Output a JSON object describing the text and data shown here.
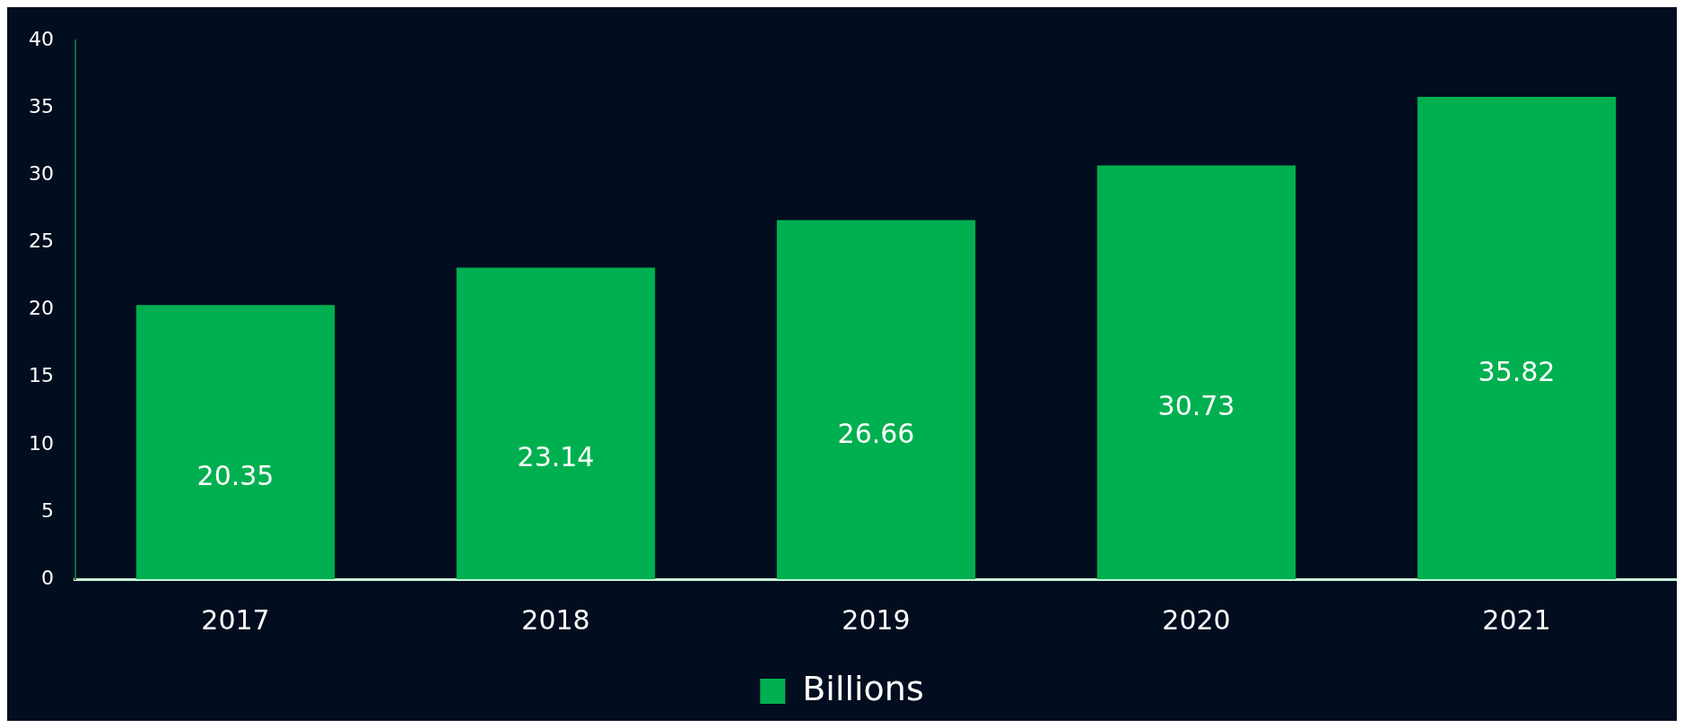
{
  "chart_data": {
    "type": "bar",
    "categories": [
      "2017",
      "2018",
      "2019",
      "2020",
      "2021"
    ],
    "series": [
      {
        "name": "Billions",
        "color": "#00b050",
        "values": [
          20.35,
          23.14,
          26.66,
          30.73,
          35.82
        ]
      }
    ],
    "ylim": [
      0,
      40
    ],
    "yticks": [
      0,
      5,
      10,
      15,
      20,
      25,
      30,
      35,
      40
    ],
    "grid": false,
    "legend": "bottom",
    "data_labels": true
  }
}
